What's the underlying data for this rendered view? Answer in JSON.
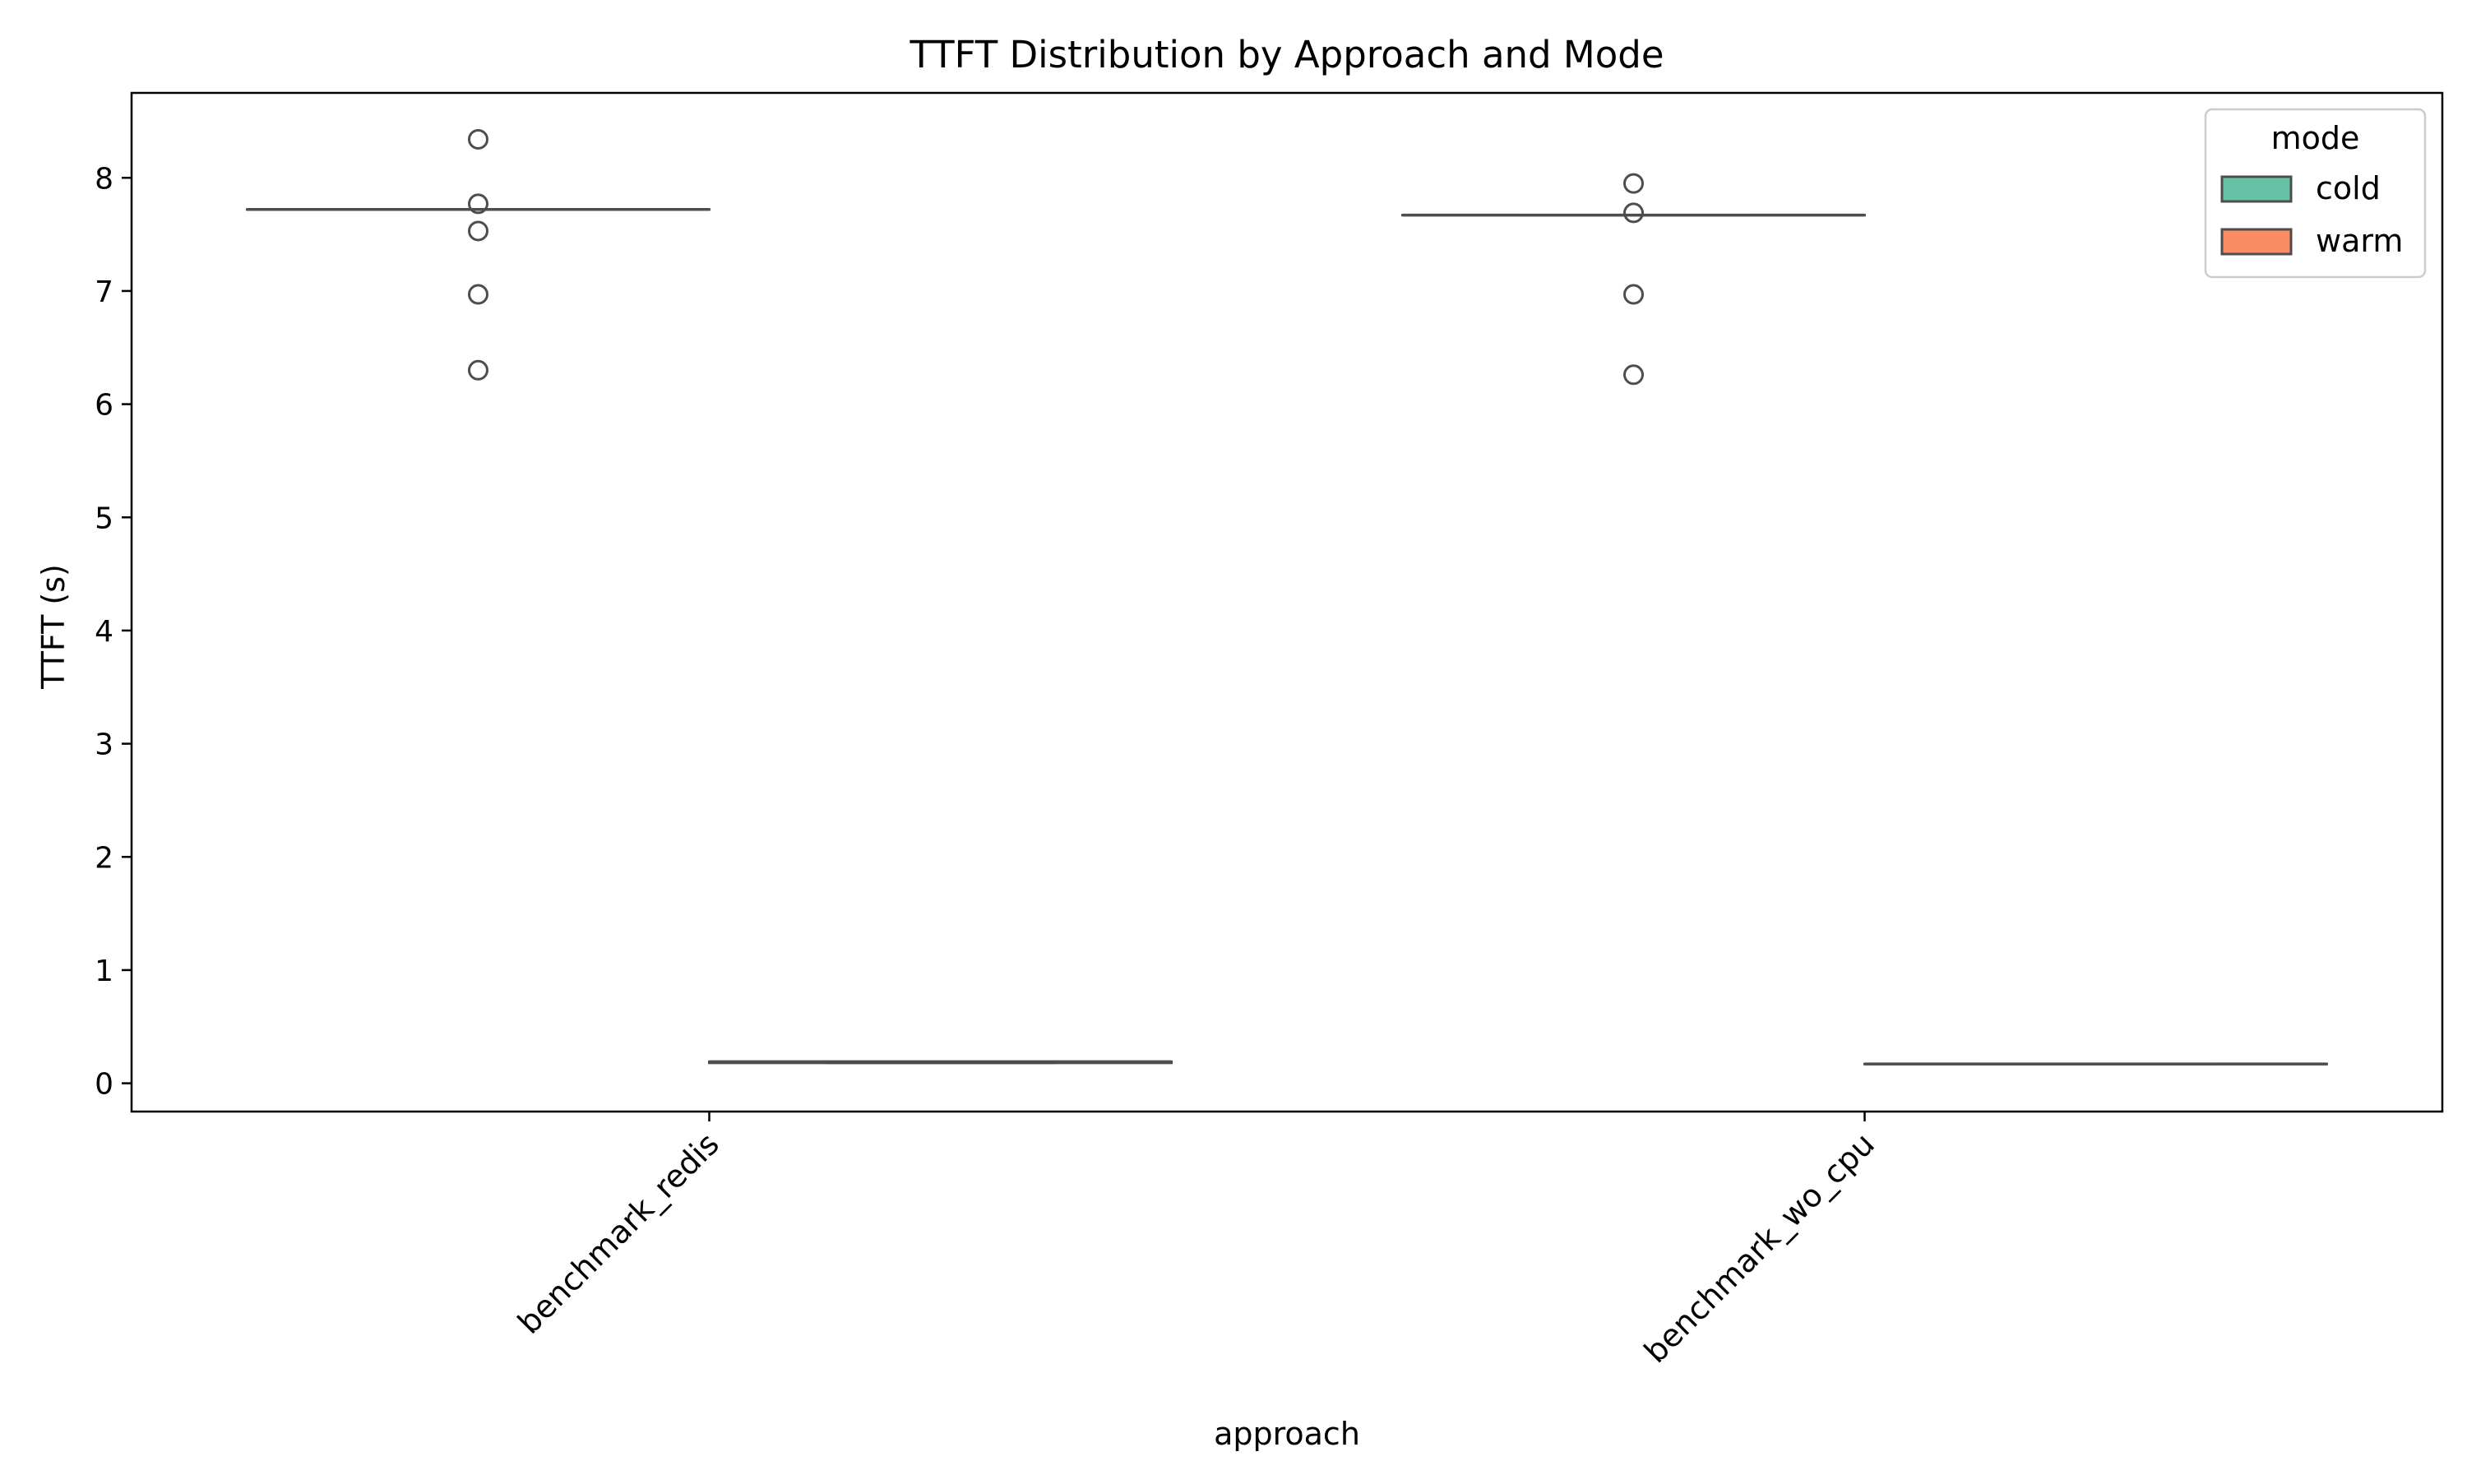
{
  "chart_data": {
    "type": "box",
    "title": "TTFT Distribution by Approach and Mode",
    "xlabel": "approach",
    "ylabel": "TTFT (s)",
    "categories": [
      "benchmark_redis",
      "benchmark_wo_cpu"
    ],
    "ylim": [
      -0.25,
      8.75
    ],
    "yticks": [
      0,
      1,
      2,
      3,
      4,
      5,
      6,
      7,
      8
    ],
    "grid": false,
    "legend": {
      "title": "mode",
      "placement": "top-right"
    },
    "series": [
      {
        "name": "cold",
        "color": "#66c2a5",
        "boxes": [
          {
            "median": 7.72,
            "q1": 7.72,
            "q3": 7.72,
            "whisker_low": 7.72,
            "whisker_high": 7.72,
            "outliers": [
              8.34,
              7.77,
              7.53,
              6.97,
              6.3
            ]
          },
          {
            "median": 7.67,
            "q1": 7.67,
            "q3": 7.67,
            "whisker_low": 7.67,
            "whisker_high": 7.67,
            "outliers": [
              7.95,
              7.69,
              6.97,
              6.26
            ]
          }
        ]
      },
      {
        "name": "warm",
        "color": "#fc8d62",
        "boxes": [
          {
            "median": 0.19,
            "q1": 0.18,
            "q3": 0.19,
            "whisker_low": 0.18,
            "whisker_high": 0.19,
            "outliers": []
          },
          {
            "median": 0.17,
            "q1": 0.17,
            "q3": 0.17,
            "whisker_low": 0.17,
            "whisker_high": 0.17,
            "outliers": []
          }
        ]
      }
    ]
  }
}
